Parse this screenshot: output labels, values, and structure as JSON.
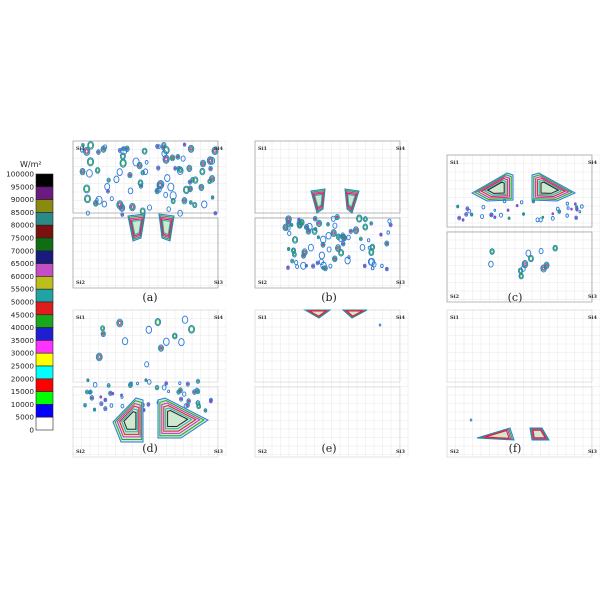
{
  "legend": {
    "unit": "W/m²",
    "levels": [
      {
        "label": "100000",
        "color": "#000000"
      },
      {
        "label": "95000",
        "color": "#6a1b7d"
      },
      {
        "label": "90000",
        "color": "#8b8a10"
      },
      {
        "label": "85000",
        "color": "#2b8a88"
      },
      {
        "label": "80000",
        "color": "#7b1010"
      },
      {
        "label": "75000",
        "color": "#0f6e14"
      },
      {
        "label": "70000",
        "color": "#1a1a7d"
      },
      {
        "label": "65000",
        "color": "#c44fc4"
      },
      {
        "label": "60000",
        "color": "#bdbd1e"
      },
      {
        "label": "55000",
        "color": "#1fa3a3"
      },
      {
        "label": "50000",
        "color": "#e01c1c"
      },
      {
        "label": "45000",
        "color": "#17a81d"
      },
      {
        "label": "40000",
        "color": "#1f1fcf"
      },
      {
        "label": "35000",
        "color": "#ff33ff"
      },
      {
        "label": "30000",
        "color": "#ffff00"
      },
      {
        "label": "25000",
        "color": "#00ffff"
      },
      {
        "label": "20000",
        "color": "#ff0000"
      },
      {
        "label": "15000",
        "color": "#00ff00"
      },
      {
        "label": "10000",
        "color": "#0000ff"
      },
      {
        "label": "5000",
        "color": "#ffffff"
      },
      {
        "label": "0",
        "color": "#ffffff"
      }
    ]
  },
  "panels": [
    {
      "caption": "(a)",
      "quadrants": [
        "Si1",
        "Si4",
        "Si2",
        "Si3"
      ]
    },
    {
      "caption": "(b)",
      "quadrants": [
        "Si1",
        "Si4",
        "Si2",
        "Si3"
      ]
    },
    {
      "caption": "(c)",
      "quadrants": [
        "Si1",
        "Si4",
        "Si2",
        "Si3"
      ]
    },
    {
      "caption": "(d)",
      "quadrants": [
        "Si1",
        "Si4",
        "Si2",
        "Si3"
      ]
    },
    {
      "caption": "(e)",
      "quadrants": [
        "Si1",
        "Si4",
        "Si2",
        "Si3"
      ]
    },
    {
      "caption": "(f)",
      "quadrants": [
        "Si1",
        "Si4",
        "Si2",
        "Si3"
      ]
    }
  ]
}
